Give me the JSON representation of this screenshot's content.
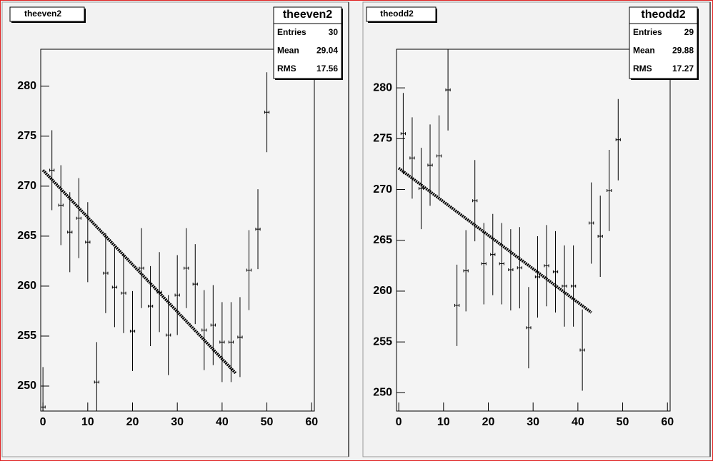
{
  "chart_data": [
    {
      "type": "errorbar",
      "title": "theeven2",
      "stats": [
        {
          "label": "Entries",
          "value": 30
        },
        {
          "label": "Mean",
          "value": 29.04
        },
        {
          "label": "RMS",
          "value": 17.56
        }
      ],
      "x": [
        0,
        2,
        4,
        6,
        8,
        10,
        12,
        14,
        16,
        18,
        20,
        22,
        24,
        26,
        28,
        30,
        32,
        34,
        36,
        38,
        40,
        42,
        44,
        46,
        48,
        50
      ],
      "values": [
        247.9,
        271.6,
        268.1,
        265.4,
        266.8,
        264.4,
        250.4,
        261.3,
        259.9,
        259.3,
        255.5,
        261.8,
        258.0,
        259.4,
        255.1,
        259.1,
        261.8,
        260.2,
        255.6,
        256.1,
        254.4,
        254.4,
        254.9,
        261.6,
        265.7,
        277.4
      ],
      "errors": [
        4,
        4,
        4,
        4,
        4,
        4,
        4,
        4,
        4,
        4,
        4,
        4,
        4,
        4,
        4,
        4,
        4,
        4,
        4,
        4,
        4,
        4,
        4,
        4,
        4,
        4
      ],
      "fit": {
        "x": [
          0,
          43
        ],
        "values": [
          271.6,
          251.3
        ]
      },
      "xlim": [
        -0.5,
        60.6
      ],
      "ylim": [
        247.5,
        283.7
      ],
      "xticks": [
        0,
        10,
        20,
        30,
        40,
        50,
        60
      ],
      "yticks": [
        250,
        255,
        260,
        265,
        270,
        275,
        280
      ]
    },
    {
      "type": "errorbar",
      "title": "theodd2",
      "stats": [
        {
          "label": "Entries",
          "value": 29
        },
        {
          "label": "Mean",
          "value": 29.88
        },
        {
          "label": "RMS",
          "value": 17.27
        }
      ],
      "x": [
        1,
        3,
        5,
        7,
        9,
        11,
        13,
        15,
        17,
        19,
        21,
        23,
        25,
        27,
        29,
        31,
        33,
        35,
        37,
        39,
        41,
        43,
        45,
        47,
        49
      ],
      "values": [
        275.5,
        273.1,
        270.1,
        272.4,
        273.3,
        279.8,
        258.6,
        262.0,
        268.9,
        262.7,
        263.6,
        262.7,
        262.1,
        262.3,
        256.4,
        261.4,
        262.5,
        261.9,
        260.5,
        260.5,
        254.2,
        266.7,
        265.4,
        269.9,
        274.9
      ],
      "errors": [
        4,
        4,
        4,
        4,
        4,
        4,
        4,
        4,
        4,
        4,
        4,
        4,
        4,
        4,
        4,
        4,
        4,
        4,
        4,
        4,
        4,
        4,
        4,
        4,
        4
      ],
      "fit": {
        "x": [
          0,
          43
        ],
        "values": [
          272.1,
          257.9
        ]
      },
      "xlim": [
        -0.5,
        60.6
      ],
      "ylim": [
        248.2,
        283.8
      ],
      "xticks": [
        0,
        10,
        20,
        30,
        40,
        50,
        60
      ],
      "yticks": [
        250,
        255,
        260,
        265,
        270,
        275,
        280
      ]
    }
  ]
}
